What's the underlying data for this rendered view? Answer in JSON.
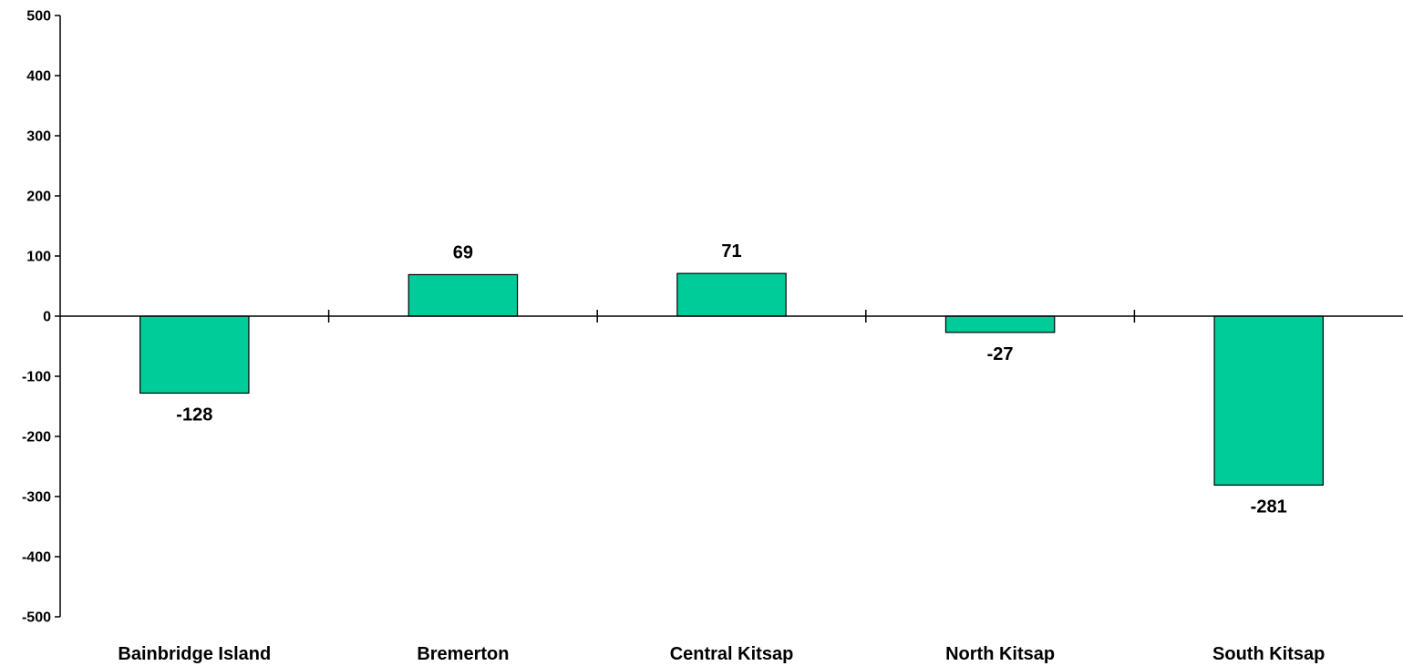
{
  "chart_data": {
    "type": "bar",
    "title": "",
    "xlabel": "",
    "ylabel": "",
    "categories": [
      "Bainbridge Island",
      "Bremerton",
      "Central Kitsap",
      "North Kitsap",
      "South Kitsap"
    ],
    "values": [
      -128,
      69,
      71,
      -27,
      -281
    ],
    "data_labels": [
      "-128",
      "69",
      "71",
      "-27",
      "-281"
    ],
    "ylim": [
      -500,
      500
    ],
    "yticks": [
      500,
      400,
      300,
      200,
      100,
      0,
      -100,
      -200,
      -300,
      -400,
      -500
    ],
    "ytick_labels": [
      "500",
      "400",
      "300",
      "200",
      "100",
      "0",
      "-100",
      "-200",
      "-300",
      "-400",
      "-500"
    ],
    "grid": false,
    "legend": "none",
    "bar_color": "#00CC99",
    "bar_edge_color": "#000000"
  }
}
